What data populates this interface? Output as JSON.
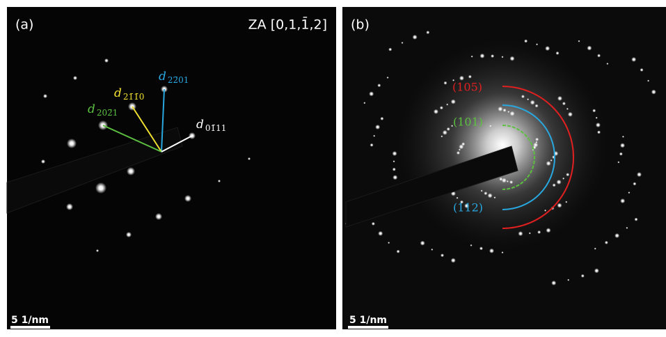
{
  "panels": [
    {
      "label": "(a)",
      "zone_axis": "ZA [0,1,1̄,2]",
      "vectors": [
        {
          "symbol": "d",
          "index": "22̄01"
        },
        {
          "symbol": "d",
          "index": "21̄1̄0"
        },
        {
          "symbol": "d",
          "index": "202̄1"
        },
        {
          "symbol": "d",
          "index": "01̄11"
        }
      ],
      "scale_bar": "5 1/nm"
    },
    {
      "label": "(b)",
      "rings": [
        "(105)",
        "(101)",
        "(112)"
      ],
      "scale_bar": "5 1/nm"
    }
  ]
}
